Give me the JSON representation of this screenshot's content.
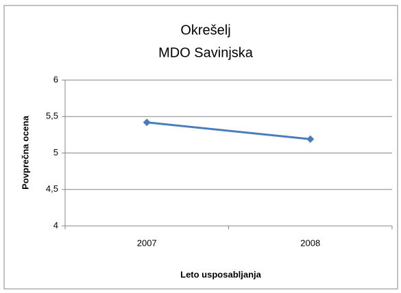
{
  "chart_data": {
    "type": "line",
    "title": [
      "Okrešelj",
      "MDO Savinjska"
    ],
    "x_label": "Leto usposabljanja",
    "y_label": "Povprečna ocena",
    "categories": [
      "2007",
      "2008"
    ],
    "series": [
      {
        "name": "Povprečna ocena",
        "color": "#4a7ebb",
        "values": [
          5.42,
          5.19
        ]
      }
    ],
    "ylim": [
      4,
      6
    ],
    "yticks": [
      4,
      {
        "value": 4.5,
        "label": "4,5"
      },
      5,
      {
        "value": 5.5,
        "label": "5,5"
      },
      6
    ],
    "grid": true
  }
}
